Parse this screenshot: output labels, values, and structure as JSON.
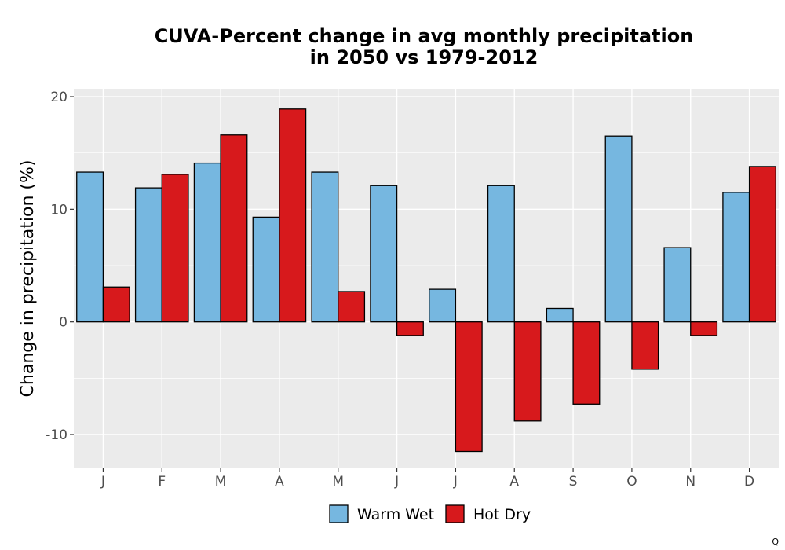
{
  "chart_data": {
    "type": "bar",
    "title": "CUVA-Percent change in avg monthly precipitation",
    "subtitle": "in 2050 vs 1979-2012",
    "xlabel": "",
    "ylabel": "Change in precipitation (%)",
    "categories": [
      "J",
      "F",
      "M",
      "A",
      "M",
      "J",
      "J",
      "A",
      "S",
      "O",
      "N",
      "D"
    ],
    "series": [
      {
        "name": "Warm Wet",
        "color": "#76b7e0",
        "values": [
          13.3,
          11.9,
          14.1,
          9.3,
          13.3,
          12.1,
          2.9,
          12.1,
          1.2,
          16.5,
          6.6,
          11.5
        ]
      },
      {
        "name": "Hot Dry",
        "color": "#d7191c",
        "values": [
          3.1,
          13.1,
          16.6,
          18.9,
          2.7,
          -1.2,
          -11.5,
          -8.8,
          -7.3,
          -4.2,
          -1.2,
          13.8
        ]
      }
    ],
    "ylim": [
      -13,
      20.7
    ],
    "yticks": [
      -10,
      0,
      10,
      20
    ],
    "ytick_labels": [
      "-10",
      "0",
      "10",
      "20"
    ],
    "grid": true,
    "panel_background": "#ebebeb",
    "legend_position": "bottom"
  },
  "corner_mark": "Q"
}
